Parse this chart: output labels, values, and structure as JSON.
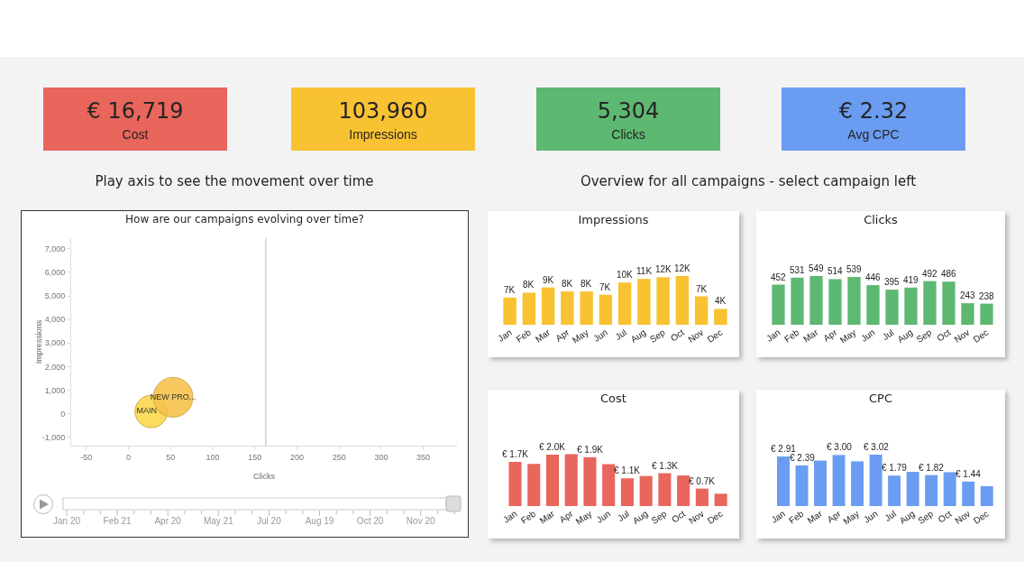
{
  "chart_data": [
    {
      "type": "other",
      "categories": [
        "Cost",
        "Impressions",
        "Clicks",
        "Avg CPC"
      ],
      "value_labels": [
        "€ 16,719",
        "103,960",
        "5,304",
        "€ 2.32"
      ],
      "colors": [
        "#e8665c",
        "#f9c232",
        "#5db872",
        "#6a9cf2"
      ],
      "annotations": [
        "Play axis to see the movement over time",
        "Overview for all campaigns - select campaign left"
      ]
    },
    {
      "type": "bubble",
      "title": "How are our campaigns evolving over time?",
      "xlabel": "Clicks",
      "ylabel": "Impressions",
      "xlim": [
        -68,
        390
      ],
      "xticks": [
        -50,
        0,
        50,
        100,
        150,
        200,
        250,
        300,
        350
      ],
      "ylim": [
        -1350,
        7450
      ],
      "yticks": [
        {
          "value": -1000,
          "label": "-1,000"
        },
        0,
        {
          "value": 1000,
          "label": "1,000"
        },
        {
          "value": 2000,
          "label": "2,000"
        },
        {
          "value": 3000,
          "label": "3,000"
        },
        {
          "value": 4000,
          "label": "4,000"
        },
        {
          "value": 5000,
          "label": "5,000"
        },
        {
          "value": 6000,
          "label": "6,000"
        },
        {
          "value": 7000,
          "label": "7,000"
        }
      ],
      "grid": false,
      "legend": false,
      "series": [
        {
          "name": "MAIN ...",
          "color": "#fad94e",
          "x": [
            27
          ],
          "values": [
            100
          ],
          "sizes": [
            0.67
          ]
        },
        {
          "name": "NEW PRO...",
          "color": "#f7c34c",
          "x": [
            53
          ],
          "values": [
            700
          ],
          "sizes": [
            1
          ]
        }
      ],
      "ref_lines": [
        {
          "axis": "x",
          "value": 163,
          "color": "#d0d0d0"
        }
      ],
      "annotations": [
        "Jan 20",
        "Feb 21",
        "Apr 20",
        "May 21",
        "Jul 20",
        "Aug 19",
        "Oct 20",
        "Nov 20"
      ]
    },
    {
      "type": "bar",
      "title": "Impressions",
      "categories": [
        "Jan",
        "Feb",
        "Mar",
        "Apr",
        "May",
        "Jun",
        "Jul",
        "Aug",
        "Sep",
        "Oct",
        "Nov",
        "Dec"
      ],
      "color": "#f9c232",
      "values": [
        6700,
        7900,
        9200,
        8200,
        8200,
        7400,
        10400,
        11300,
        11700,
        12000,
        7000,
        3900
      ],
      "value_labels": [
        "7K",
        "8K",
        "9K",
        "8K",
        "8K",
        "7K",
        "10K",
        "11K",
        "12K",
        "12K",
        "7K",
        "4K"
      ]
    },
    {
      "type": "bar",
      "title": "Clicks",
      "categories": [
        "Jan",
        "Feb",
        "Mar",
        "Apr",
        "May",
        "Jun",
        "Jul",
        "Aug",
        "Sep",
        "Oct",
        "Nov",
        "Dec"
      ],
      "color": "#5db872",
      "values": [
        452,
        531,
        549,
        514,
        539,
        446,
        395,
        419,
        492,
        486,
        243,
        238
      ],
      "data_labels": true
    },
    {
      "type": "bar",
      "title": "Cost",
      "categories": [
        "Jan",
        "Feb",
        "Mar",
        "Apr",
        "May",
        "Jun",
        "Jul",
        "Aug",
        "Sep",
        "Oct",
        "Nov",
        "Dec"
      ],
      "color": "#e8665c",
      "values": [
        1720,
        1640,
        2000,
        2020,
        1900,
        1630,
        1080,
        1170,
        1280,
        1190,
        680,
        480
      ],
      "value_labels": [
        "€ 1.7K",
        null,
        "€ 2.0K",
        null,
        "€ 1.9K",
        null,
        "€ 1.1K",
        null,
        "€ 1.3K",
        null,
        "€ 0.7K",
        null
      ]
    },
    {
      "type": "bar",
      "title": "CPC",
      "categories": [
        "Jan",
        "Feb",
        "Mar",
        "Apr",
        "May",
        "Jun",
        "Jul",
        "Aug",
        "Sep",
        "Oct",
        "Nov",
        "Dec"
      ],
      "color": "#6a9cf2",
      "values": [
        2.91,
        2.39,
        2.67,
        3.0,
        2.63,
        3.02,
        1.79,
        2.01,
        1.82,
        1.99,
        1.44,
        1.17
      ],
      "value_labels": [
        "€ 2.91",
        "€ 2.39",
        null,
        "€ 3.00",
        null,
        "€ 3.02",
        "€ 1.79",
        null,
        "€ 1.82",
        null,
        "€ 1.44",
        null
      ]
    }
  ]
}
